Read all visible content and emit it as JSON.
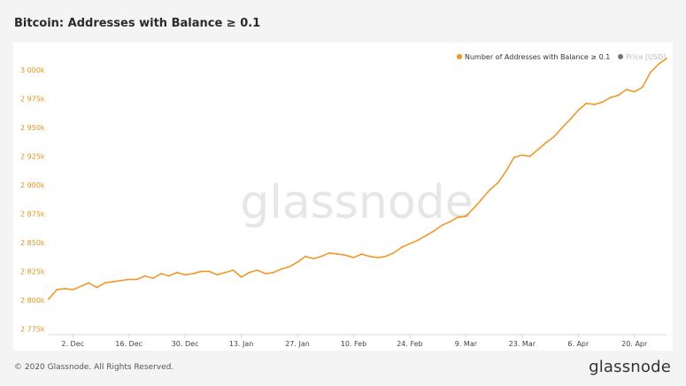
{
  "title": "Bitcoin: Addresses with Balance ≥ 0.1",
  "footer": "© 2020 Glassnode. All Rights Reserved.",
  "brand": "glassnode",
  "watermark": "glassnode",
  "colors": {
    "series": "#f7931a",
    "price": "#777777",
    "axis_text": "#e69319"
  },
  "chart_data": {
    "type": "line",
    "title": "Bitcoin: Addresses with Balance ≥ 0.1",
    "xlabel": "",
    "ylabel": "",
    "ylim": [
      2770000,
      3020000
    ],
    "grid": false,
    "legend_position": "top-right",
    "y_ticks": [
      {
        "value": 2775000,
        "label": "2 775k"
      },
      {
        "value": 2800000,
        "label": "2 800k"
      },
      {
        "value": 2825000,
        "label": "2 825k"
      },
      {
        "value": 2850000,
        "label": "2 850k"
      },
      {
        "value": 2875000,
        "label": "2 875k"
      },
      {
        "value": 2900000,
        "label": "2 900k"
      },
      {
        "value": 2925000,
        "label": "2 925k"
      },
      {
        "value": 2950000,
        "label": "2 950k"
      },
      {
        "value": 2975000,
        "label": "2 975k"
      },
      {
        "value": 3000000,
        "label": "3 000k"
      }
    ],
    "x_ticks": [
      "2. Dec",
      "16. Dec",
      "30. Dec",
      "13. Jan",
      "27. Jan",
      "10. Feb",
      "24. Feb",
      "9. Mar",
      "23. Mar",
      "6. Apr",
      "20. Apr"
    ],
    "x_range": [
      "2019-11-26",
      "2020-04-28"
    ],
    "legend": [
      {
        "name": "Number of Addresses with Balance ≥ 0.1",
        "color": "#f7931a",
        "active": true
      },
      {
        "name": "Price [USD]",
        "color": "#777777",
        "active": false
      }
    ],
    "series": [
      {
        "name": "Number of Addresses with Balance ≥ 0.1",
        "color": "#f7931a",
        "points": [
          [
            "2019-11-26",
            2801000
          ],
          [
            "2019-11-28",
            2809000
          ],
          [
            "2019-11-30",
            2810000
          ],
          [
            "2019-12-02",
            2809000
          ],
          [
            "2019-12-04",
            2812000
          ],
          [
            "2019-12-06",
            2815000
          ],
          [
            "2019-12-08",
            2811000
          ],
          [
            "2019-12-10",
            2815000
          ],
          [
            "2019-12-12",
            2816000
          ],
          [
            "2019-12-14",
            2817000
          ],
          [
            "2019-12-16",
            2818000
          ],
          [
            "2019-12-18",
            2818000
          ],
          [
            "2019-12-20",
            2821000
          ],
          [
            "2019-12-22",
            2819000
          ],
          [
            "2019-12-24",
            2823000
          ],
          [
            "2019-12-26",
            2821000
          ],
          [
            "2019-12-28",
            2824000
          ],
          [
            "2019-12-30",
            2822000
          ],
          [
            "2020-01-01",
            2823000
          ],
          [
            "2020-01-03",
            2825000
          ],
          [
            "2020-01-05",
            2825000
          ],
          [
            "2020-01-07",
            2822000
          ],
          [
            "2020-01-09",
            2824000
          ],
          [
            "2020-01-11",
            2826000
          ],
          [
            "2020-01-13",
            2820000
          ],
          [
            "2020-01-15",
            2824000
          ],
          [
            "2020-01-17",
            2826000
          ],
          [
            "2020-01-19",
            2823000
          ],
          [
            "2020-01-21",
            2824000
          ],
          [
            "2020-01-23",
            2827000
          ],
          [
            "2020-01-25",
            2829000
          ],
          [
            "2020-01-27",
            2833000
          ],
          [
            "2020-01-29",
            2838000
          ],
          [
            "2020-01-31",
            2836000
          ],
          [
            "2020-02-02",
            2838000
          ],
          [
            "2020-02-04",
            2841000
          ],
          [
            "2020-02-06",
            2840000
          ],
          [
            "2020-02-08",
            2839000
          ],
          [
            "2020-02-10",
            2837000
          ],
          [
            "2020-02-12",
            2840000
          ],
          [
            "2020-02-14",
            2838000
          ],
          [
            "2020-02-16",
            2837000
          ],
          [
            "2020-02-18",
            2838000
          ],
          [
            "2020-02-20",
            2841000
          ],
          [
            "2020-02-22",
            2846000
          ],
          [
            "2020-02-24",
            2849000
          ],
          [
            "2020-02-26",
            2852000
          ],
          [
            "2020-02-28",
            2856000
          ],
          [
            "2020-03-01",
            2860000
          ],
          [
            "2020-03-03",
            2865000
          ],
          [
            "2020-03-05",
            2868000
          ],
          [
            "2020-03-07",
            2872000
          ],
          [
            "2020-03-09",
            2873000
          ],
          [
            "2020-03-11",
            2880000
          ],
          [
            "2020-03-13",
            2888000
          ],
          [
            "2020-03-15",
            2896000
          ],
          [
            "2020-03-17",
            2902000
          ],
          [
            "2020-03-19",
            2912000
          ],
          [
            "2020-03-21",
            2924000
          ],
          [
            "2020-03-23",
            2926000
          ],
          [
            "2020-03-25",
            2925000
          ],
          [
            "2020-03-27",
            2931000
          ],
          [
            "2020-03-29",
            2937000
          ],
          [
            "2020-03-31",
            2942000
          ],
          [
            "2020-04-02",
            2950000
          ],
          [
            "2020-04-04",
            2957000
          ],
          [
            "2020-04-06",
            2965000
          ],
          [
            "2020-04-08",
            2971000
          ],
          [
            "2020-04-10",
            2970000
          ],
          [
            "2020-04-12",
            2972000
          ],
          [
            "2020-04-14",
            2976000
          ],
          [
            "2020-04-16",
            2978000
          ],
          [
            "2020-04-18",
            2983000
          ],
          [
            "2020-04-20",
            2981000
          ],
          [
            "2020-04-22",
            2985000
          ],
          [
            "2020-04-24",
            2998000
          ],
          [
            "2020-04-26",
            3005000
          ],
          [
            "2020-04-28",
            3010000
          ]
        ]
      }
    ]
  }
}
